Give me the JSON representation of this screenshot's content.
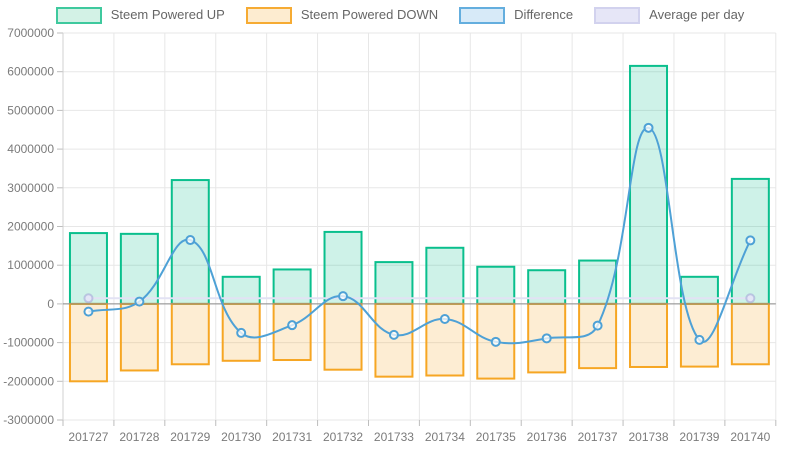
{
  "legend": {
    "items": [
      {
        "label": "Steem Powered UP",
        "fill": "#d3f2e6",
        "border": "#3fc99e"
      },
      {
        "label": "Steem Powered DOWN",
        "fill": "#fdecd0",
        "border": "#f6ab33"
      },
      {
        "label": "Difference",
        "fill": "#d7eaf8",
        "border": "#64aede"
      },
      {
        "label": "Average per day",
        "fill": "#e6e6f7",
        "border": "#d2d2ee"
      }
    ]
  },
  "chart_data": {
    "type": "mixed_bar_line",
    "title": "",
    "xlabel": "",
    "ylabel": "",
    "categories": [
      "201727",
      "201728",
      "201729",
      "201730",
      "201731",
      "201732",
      "201733",
      "201734",
      "201735",
      "201736",
      "201737",
      "201738",
      "201739",
      "201740"
    ],
    "series": [
      {
        "name": "Steem Powered UP",
        "type": "bar",
        "color": "#0abf8d",
        "fill_alpha": 0.2,
        "values": [
          1830000,
          1810000,
          3200000,
          700000,
          890000,
          1860000,
          1080000,
          1450000,
          960000,
          870000,
          1120000,
          6150000,
          700000,
          3230000
        ]
      },
      {
        "name": "Steem Powered DOWN",
        "type": "bar",
        "color": "#f6a623",
        "fill_alpha": 0.2,
        "values": [
          -2000000,
          -1720000,
          -1560000,
          -1470000,
          -1450000,
          -1700000,
          -1880000,
          -1850000,
          -1930000,
          -1770000,
          -1660000,
          -1630000,
          -1620000,
          -1560000
        ]
      },
      {
        "name": "Difference",
        "type": "line",
        "color": "#4ea1d6",
        "tension": 0.4,
        "marker_radius": 4,
        "values": [
          -200000,
          60000,
          1650000,
          -750000,
          -550000,
          200000,
          -800000,
          -390000,
          -980000,
          -890000,
          -560000,
          4550000,
          -930000,
          1640000
        ]
      },
      {
        "name": "Average per day",
        "type": "line",
        "color": "#e2e2f4",
        "tension": 0,
        "marker_radius": 4,
        "markers_at_ends_only": true,
        "values": [
          145000,
          145000,
          145000,
          145000,
          145000,
          145000,
          145000,
          145000,
          145000,
          145000,
          145000,
          145000,
          145000,
          145000
        ]
      }
    ],
    "ylim": [
      -3000000,
      7000000
    ],
    "y_ticks": [
      7000000,
      6000000,
      5000000,
      4000000,
      3000000,
      2000000,
      1000000,
      0,
      -1000000,
      -2000000,
      -3000000
    ],
    "grid": true,
    "legend_position": "top"
  },
  "axis_style": {
    "grid_color": "#e7e7e7",
    "zero_line_color": "#8a8a8a",
    "axis_line_color": "#d0d0d0",
    "tick_color": "#bdbdbd",
    "label_color": "#7b7b7b"
  }
}
